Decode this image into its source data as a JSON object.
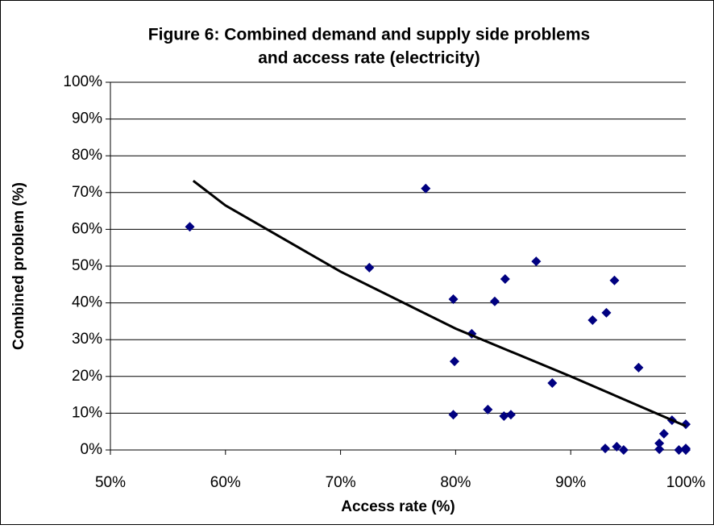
{
  "chart_data": {
    "type": "scatter",
    "title": [
      "Figure 6: Combined demand and supply side problems",
      "and access rate (electricity)"
    ],
    "x_label": "Access rate (%)",
    "y_label": "Combined problem (%)",
    "xlim": [
      50,
      100
    ],
    "ylim": [
      0,
      100
    ],
    "xticks": [
      {
        "value": 50,
        "label": "50%"
      },
      {
        "value": 60,
        "label": "60%"
      },
      {
        "value": 70,
        "label": "70%"
      },
      {
        "value": 80,
        "label": "80%"
      },
      {
        "value": 90,
        "label": "90%"
      },
      {
        "value": 100,
        "label": "100%"
      }
    ],
    "yticks": [
      {
        "value": 0,
        "label": "0%"
      },
      {
        "value": 10,
        "label": "10%"
      },
      {
        "value": 20,
        "label": "20%"
      },
      {
        "value": 30,
        "label": "30%"
      },
      {
        "value": 40,
        "label": "40%"
      },
      {
        "value": 50,
        "label": "50%"
      },
      {
        "value": 60,
        "label": "60%"
      },
      {
        "value": 70,
        "label": "70%"
      },
      {
        "value": 80,
        "label": "80%"
      },
      {
        "value": 90,
        "label": "90%"
      },
      {
        "value": 100,
        "label": "100%"
      }
    ],
    "grid": true,
    "color": "#000080",
    "x": [
      56.9,
      72.5,
      77.4,
      79.8,
      79.9,
      79.8,
      81.4,
      82.8,
      83.4,
      84.2,
      84.8,
      84.3,
      87.0,
      88.4,
      91.9,
      93.1,
      93.0,
      93.8,
      94.0,
      94.6,
      95.9,
      97.7,
      97.7,
      98.1,
      98.8,
      99.4,
      100,
      100,
      100
    ],
    "values": [
      60.7,
      49.6,
      71.1,
      41.0,
      24.1,
      9.6,
      31.6,
      11.0,
      40.4,
      9.2,
      9.6,
      46.5,
      51.3,
      18.2,
      35.3,
      37.3,
      0.4,
      46.1,
      0.9,
      0,
      22.4,
      1.8,
      0.2,
      4.4,
      8.1,
      0,
      0.4,
      0,
      7.0
    ],
    "trendline": {
      "color": "#000000",
      "x": [
        57.2,
        60,
        70,
        80,
        90,
        100
      ],
      "values": [
        73.2,
        66.5,
        48.5,
        33,
        20,
        6.5
      ]
    }
  }
}
